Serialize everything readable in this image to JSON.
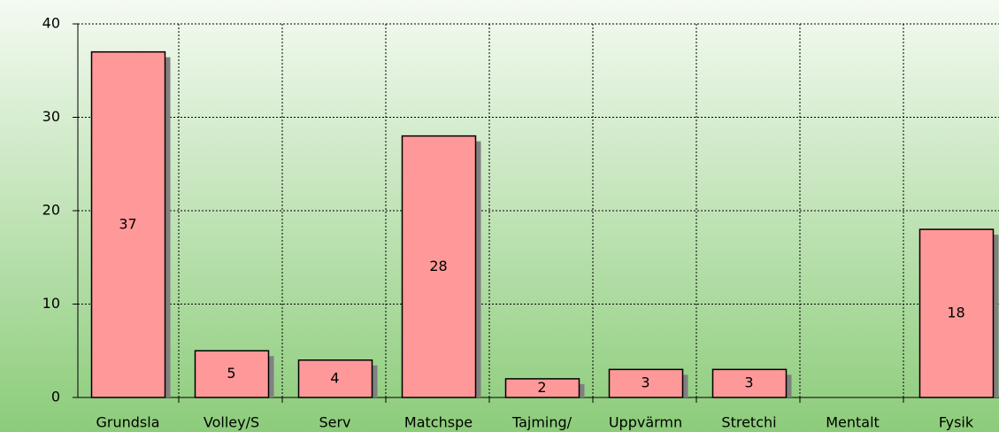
{
  "chart_data": {
    "type": "bar",
    "categories": [
      "Grundsla",
      "Volley/S",
      "Serv",
      "Matchspe",
      "Tajming/",
      "Uppvärmn",
      "Stretchi",
      "Mentalt",
      "Fysik"
    ],
    "values": [
      37,
      5,
      4,
      28,
      2,
      3,
      3,
      0,
      18
    ],
    "color": "#ff9999",
    "ylim": [
      0,
      40
    ],
    "yticks": [
      0,
      10,
      20,
      30,
      40
    ],
    "grid": true
  }
}
